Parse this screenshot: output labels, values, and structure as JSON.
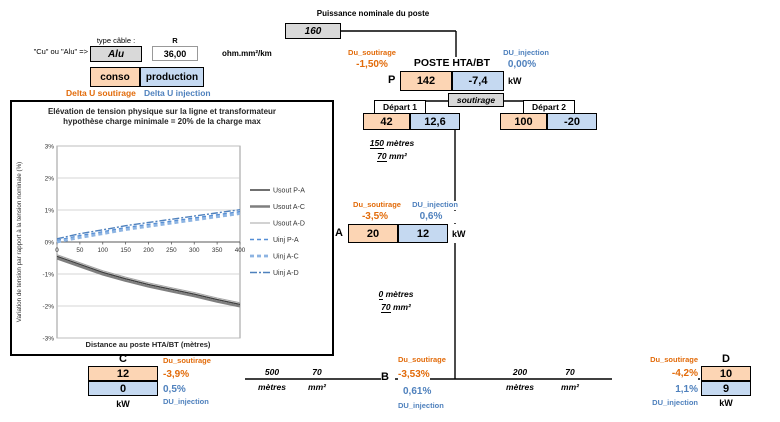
{
  "header": {
    "power_label": "Puissance nominale du poste",
    "power_value": "160"
  },
  "cable": {
    "prompt": "\"Cu\" ou \"Alu\" =>",
    "type_label": "type câble :",
    "type_value": "Alu",
    "r_label": "R",
    "r_value": "36,00",
    "r_unit": "ohm.mm²/km"
  },
  "legend_boxes": {
    "conso": "conso",
    "production": "production",
    "delta_soutirage": "Delta U soutirage",
    "delta_injection": "Delta U injection"
  },
  "labels": {
    "du_soutirage": "Du_soutirage",
    "du_injection": "DU_injection",
    "kw": "kW"
  },
  "poste": {
    "title": "POSTE HTA/BT",
    "du_soutirage": "-1,50%",
    "du_injection": "0,00%",
    "row_label": "P",
    "conso": "142",
    "production": "-7,4",
    "mode": "soutirage"
  },
  "departs": [
    {
      "label": "Départ 1",
      "conso": "42",
      "production": "12,6"
    },
    {
      "label": "Départ 2",
      "conso": "100",
      "production": "-20"
    }
  ],
  "segments": {
    "d1_a": {
      "length": "150",
      "length_unit": "mètres",
      "section": "70",
      "section_unit": "mm²"
    },
    "a_b": {
      "length": "0",
      "length_unit": "mètres",
      "section": "70",
      "section_unit": "mm²"
    },
    "c_b": {
      "length": "500",
      "length_unit": "mètres",
      "section": "70",
      "section_unit": "mm²"
    },
    "b_d": {
      "length": "200",
      "length_unit": "mètres",
      "section": "70",
      "section_unit": "mm²"
    }
  },
  "nodes": {
    "A": {
      "letter": "A",
      "du_soutirage": "-3,5%",
      "du_injection": "0,6%",
      "conso": "20",
      "production": "12"
    },
    "B": {
      "letter": "B",
      "du_soutirage": "-3,53%",
      "du_injection": "0,61%"
    },
    "C": {
      "letter": "C",
      "du_soutirage": "-3,9%",
      "du_injection": "0,5%",
      "conso": "12",
      "production": "0"
    },
    "D": {
      "letter": "D",
      "du_soutirage": "-4,2%",
      "du_injection": "1,1%",
      "conso": "10",
      "production": "9"
    }
  },
  "chart_data": {
    "type": "line",
    "title": "Elévation de tension physique sur la ligne et transformateur",
    "subtitle": "hypothèse charge minimale = 20% de la charge max",
    "xlabel": "Distance au poste HTA/BT (mètres)",
    "ylabel": "Variation de tension par rapport à la tension nominale (%)",
    "xlim": [
      0,
      400
    ],
    "ylim": [
      -3,
      3
    ],
    "grid": true,
    "legend_position": "right",
    "x": [
      0,
      50,
      100,
      150,
      200,
      250,
      300,
      350,
      400
    ],
    "x_ticks": [
      0,
      50,
      100,
      150,
      200,
      250,
      300,
      350,
      400
    ],
    "y_ticks": [
      "3%",
      "2%",
      "1%",
      "0%",
      "-1%",
      "-2%",
      "-3%"
    ],
    "series": [
      {
        "name": "Usout P-A",
        "style": "solid",
        "color": "#404040",
        "width": 1.4,
        "values": [
          -0.45,
          -0.7,
          -0.95,
          -1.15,
          -1.33,
          -1.48,
          -1.63,
          -1.8,
          -1.95
        ]
      },
      {
        "name": "Usout A-C",
        "style": "solid",
        "color": "#7F7F7F",
        "width": 2.4,
        "values": [
          -0.51,
          -0.76,
          -1.01,
          -1.21,
          -1.39,
          -1.54,
          -1.69,
          -1.86,
          -2.01
        ]
      },
      {
        "name": "Usout A-D",
        "style": "solid",
        "color": "#A6A6A6",
        "width": 1.1,
        "values": [
          -0.4,
          -0.65,
          -0.9,
          -1.1,
          -1.28,
          -1.43,
          -1.58,
          -1.75,
          -1.9
        ]
      },
      {
        "name": "Uinj P-A",
        "style": "dashed",
        "color": "#558ED5",
        "width": 1.4,
        "values": [
          0.05,
          0.2,
          0.32,
          0.45,
          0.55,
          0.65,
          0.75,
          0.85,
          0.95
        ]
      },
      {
        "name": "Uinj A-C",
        "style": "dashed",
        "color": "#8DB4E2",
        "width": 2.8,
        "values": [
          0.0,
          0.14,
          0.26,
          0.39,
          0.49,
          0.59,
          0.69,
          0.79,
          0.89
        ]
      },
      {
        "name": "Uinj A-D",
        "style": "dashdot",
        "color": "#4F81BD",
        "width": 1.4,
        "values": [
          0.1,
          0.26,
          0.38,
          0.51,
          0.61,
          0.71,
          0.81,
          0.91,
          1.01
        ]
      }
    ]
  }
}
